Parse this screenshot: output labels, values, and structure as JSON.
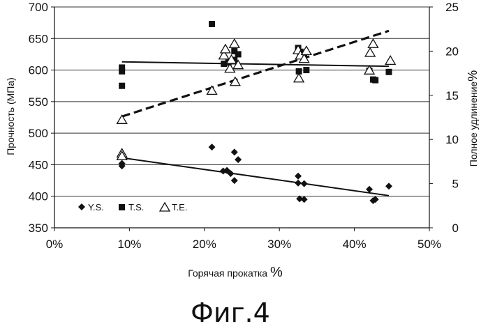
{
  "caption": "Фиг.4",
  "chart_data": {
    "type": "scatter",
    "xlabel": "Горячая прокатка",
    "xlabel_unit": "%",
    "ylabel": "Прочность (МПа)",
    "y2label": "Полное удлинение",
    "y2label_unit": "%",
    "xlim": [
      0,
      50
    ],
    "ylim": [
      350,
      700
    ],
    "y2lim": [
      0,
      25
    ],
    "x_ticks": [
      "0%",
      "10%",
      "20%",
      "30%",
      "40%",
      "50%"
    ],
    "x_tick_values": [
      0,
      10,
      20,
      30,
      40,
      50
    ],
    "y_ticks": [
      "350",
      "400",
      "450",
      "500",
      "550",
      "600",
      "650",
      "700"
    ],
    "y_tick_values": [
      350,
      400,
      450,
      500,
      550,
      600,
      650,
      700
    ],
    "y2_ticks": [
      "0",
      "5",
      "10",
      "15",
      "20",
      "25"
    ],
    "y2_tick_values": [
      0,
      5,
      10,
      15,
      20,
      25
    ],
    "grid": "horizontal",
    "legend_position": "bottom-left",
    "series": [
      {
        "name": "Y.S.",
        "marker": "diamond",
        "axis": "left",
        "points": [
          [
            9,
            448
          ],
          [
            9,
            452
          ],
          [
            21,
            478
          ],
          [
            22.5,
            440
          ],
          [
            23,
            441
          ],
          [
            23.5,
            436
          ],
          [
            24,
            470
          ],
          [
            24,
            425
          ],
          [
            24.5,
            458
          ],
          [
            32.5,
            432
          ],
          [
            32.5,
            421
          ],
          [
            32.7,
            396
          ],
          [
            33.3,
            420
          ],
          [
            33.3,
            395
          ],
          [
            42,
            411
          ],
          [
            42.5,
            393
          ],
          [
            42.8,
            395
          ],
          [
            44.6,
            416
          ]
        ],
        "trend": [
          [
            9,
            461
          ],
          [
            44.6,
            401
          ]
        ],
        "trend_style": "solid"
      },
      {
        "name": "T.S.",
        "marker": "square",
        "axis": "left",
        "points": [
          [
            9,
            604
          ],
          [
            9,
            598
          ],
          [
            9,
            575
          ],
          [
            21,
            673
          ],
          [
            22.6,
            610
          ],
          [
            23.2,
            612
          ],
          [
            24,
            630
          ],
          [
            24,
            616
          ],
          [
            24.5,
            625
          ],
          [
            32.5,
            635
          ],
          [
            32.6,
            598
          ],
          [
            32.8,
            629
          ],
          [
            33.3,
            625
          ],
          [
            33.6,
            600
          ],
          [
            42,
            599
          ],
          [
            42.5,
            585
          ],
          [
            42.8,
            584
          ],
          [
            44.6,
            597
          ]
        ],
        "trend": [
          [
            9,
            613
          ],
          [
            44.6,
            606
          ]
        ],
        "trend_style": "solid"
      },
      {
        "name": "T.E.",
        "marker": "triangle-open",
        "axis": "right",
        "points": [
          [
            9,
            12.2
          ],
          [
            9,
            8.4
          ],
          [
            9,
            8.1
          ],
          [
            21,
            15.5
          ],
          [
            22.6,
            19.5
          ],
          [
            22.8,
            20.2
          ],
          [
            23.4,
            18.0
          ],
          [
            23.6,
            19.0
          ],
          [
            24,
            20.8
          ],
          [
            24.1,
            16.5
          ],
          [
            24.5,
            18.4
          ],
          [
            32.5,
            20.1
          ],
          [
            32.6,
            16.9
          ],
          [
            32.8,
            19.5
          ],
          [
            33.3,
            19.1
          ],
          [
            33.6,
            20.0
          ],
          [
            42,
            17.8
          ],
          [
            42.1,
            19.8
          ],
          [
            42.5,
            20.8
          ],
          [
            44.8,
            18.9
          ]
        ],
        "trend": [
          [
            9,
            12.6
          ],
          [
            44.6,
            22.3
          ]
        ],
        "trend_style": "dashed"
      }
    ]
  }
}
